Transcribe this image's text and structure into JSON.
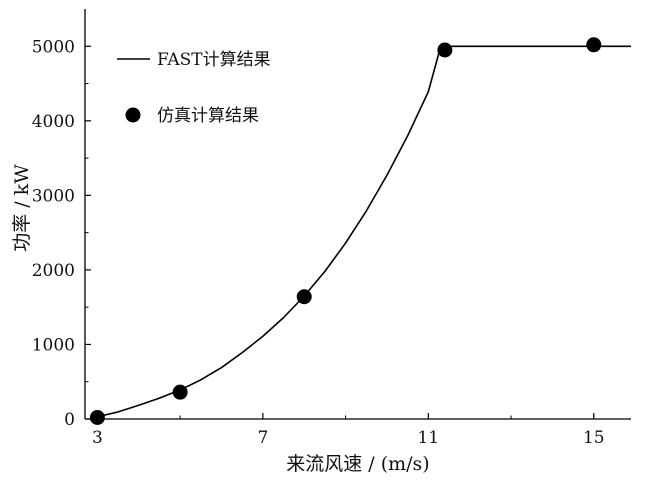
{
  "chart_data": {
    "type": "line",
    "title": "",
    "xlabel": "来流风速 / (m/s)",
    "ylabel": "功率 / kW",
    "xlim": [
      2.7,
      15.9
    ],
    "ylim": [
      0,
      5500
    ],
    "xticks": [
      3,
      7,
      11,
      15
    ],
    "xtick_labels": [
      "3",
      "7",
      "11",
      "15"
    ],
    "yticks": [
      0,
      1000,
      2000,
      3000,
      4000,
      5000
    ],
    "ytick_labels": [
      "0",
      "1000",
      "2000",
      "3000",
      "4000",
      "5000"
    ],
    "grid": false,
    "legend_position": "upper-left",
    "series": [
      {
        "name": "FAST计算结果",
        "style": "line",
        "color": "#000000",
        "x": [
          3,
          3.5,
          4,
          4.5,
          5,
          5.5,
          6,
          6.5,
          7,
          7.5,
          8,
          8.5,
          9,
          9.5,
          10,
          10.5,
          11,
          11.3,
          11.5,
          12,
          13,
          14,
          15,
          15.9
        ],
        "y": [
          30,
          95,
          185,
          280,
          390,
          525,
          690,
          890,
          1110,
          1360,
          1650,
          1980,
          2360,
          2790,
          3270,
          3800,
          4390,
          5000,
          5000,
          5000,
          5000,
          5000,
          5000,
          5000
        ]
      },
      {
        "name": "仿真计算结果",
        "style": "marker",
        "color": "#000000",
        "x": [
          3,
          5,
          8,
          11.4,
          15
        ],
        "y": [
          20,
          360,
          1640,
          4950,
          5020
        ]
      }
    ]
  }
}
